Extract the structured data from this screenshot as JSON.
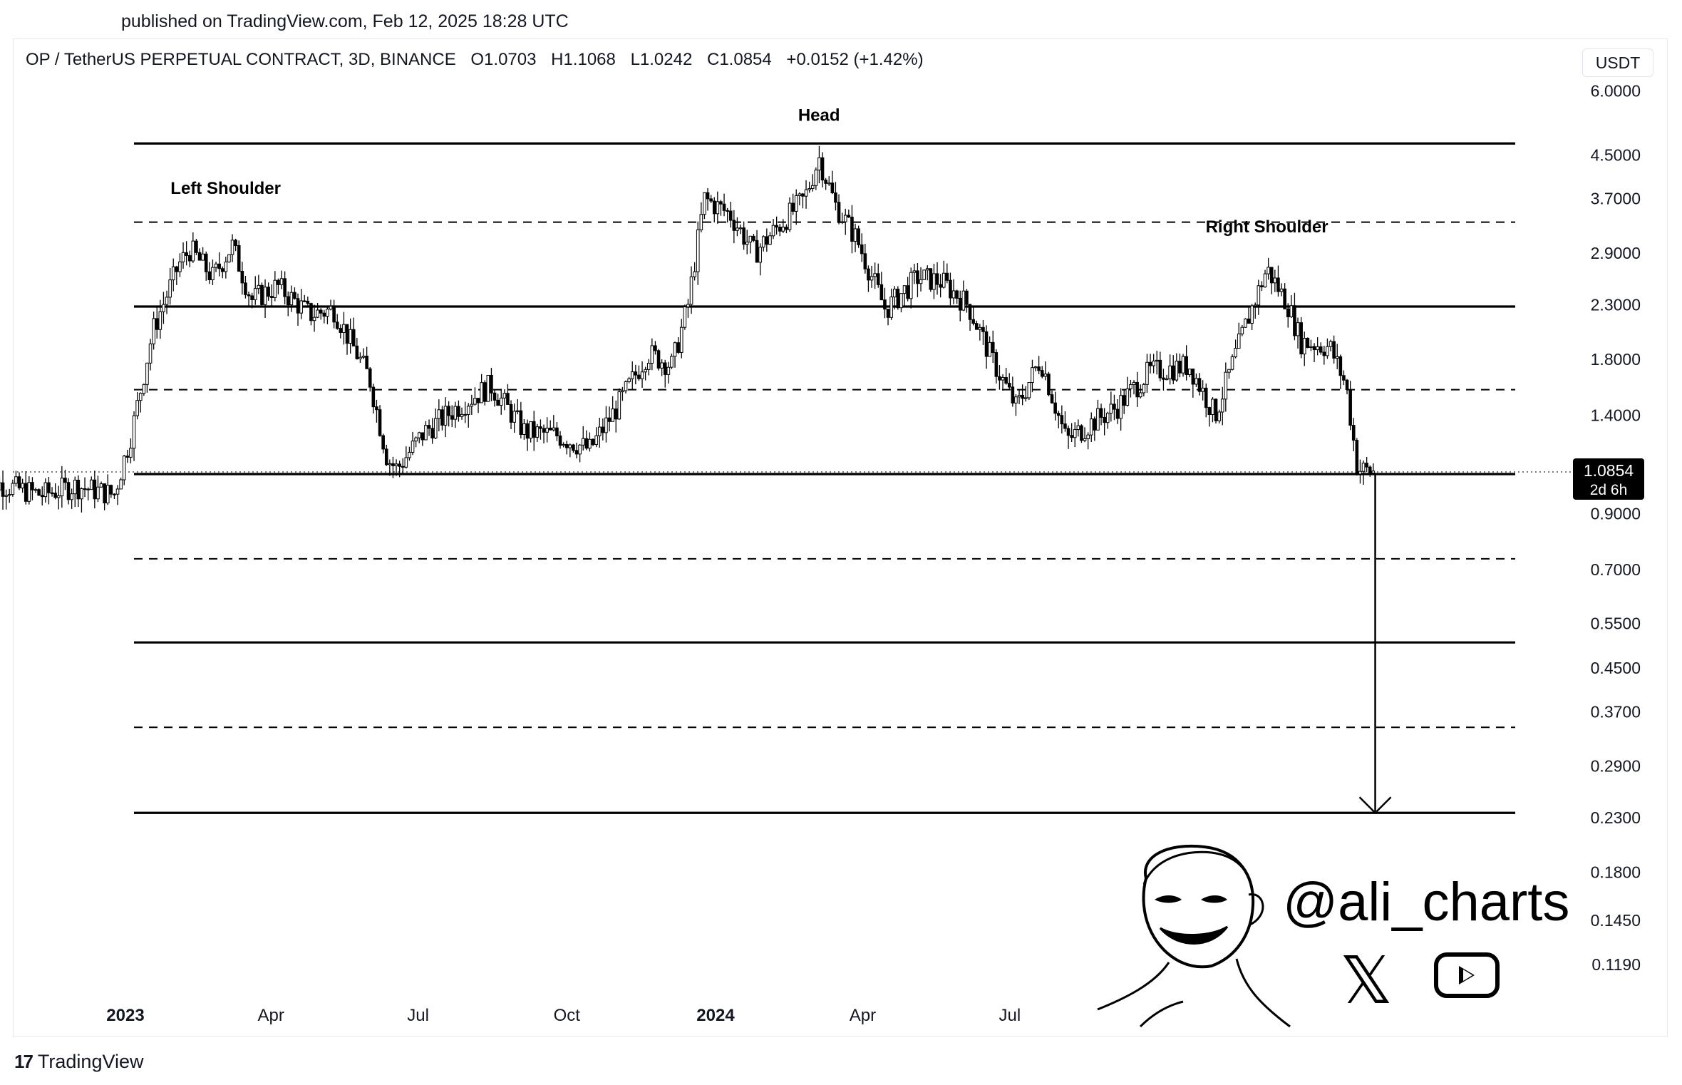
{
  "header": {
    "published": "published on TradingView.com, Feb 12, 2025 18:28 UTC"
  },
  "legend": {
    "symbol": "OP / TetherUS PERPETUAL CONTRACT, 3D, BINANCE",
    "open": "O1.0703",
    "high": "H1.1068",
    "low": "L1.0242",
    "close": "C1.0854",
    "change": "+0.0152 (+1.42%)"
  },
  "currency_button": "USDT",
  "footer": {
    "logo_mark": "17",
    "logo_text": "TradingView"
  },
  "watermark": {
    "handle": "@ali_charts",
    "x_logo": "𝕏",
    "icons": [
      "x-logo-icon",
      "youtube-icon"
    ]
  },
  "colors": {
    "line": "#000000",
    "candle_up_fill": "#ffffff",
    "candle_down_fill": "#000000",
    "price_label_bg": "#000000"
  },
  "chart_data": {
    "type": "candlestick",
    "title": "",
    "scale": "log",
    "ylim": [
      0.1,
      6.5
    ],
    "y_ticks": [
      {
        "label": "6.0000",
        "value": 6.0
      },
      {
        "label": "4.5000",
        "value": 4.5
      },
      {
        "label": "3.7000",
        "value": 3.7
      },
      {
        "label": "2.9000",
        "value": 2.9
      },
      {
        "label": "2.3000",
        "value": 2.3
      },
      {
        "label": "1.8000",
        "value": 1.8
      },
      {
        "label": "1.4000",
        "value": 1.4
      },
      {
        "label": "0.9000",
        "value": 0.9
      },
      {
        "label": "0.7000",
        "value": 0.7
      },
      {
        "label": "0.5500",
        "value": 0.55
      },
      {
        "label": "0.4500",
        "value": 0.45
      },
      {
        "label": "0.3700",
        "value": 0.37
      },
      {
        "label": "0.2900",
        "value": 0.29
      },
      {
        "label": "0.2300",
        "value": 0.23
      },
      {
        "label": "0.1800",
        "value": 0.18
      },
      {
        "label": "0.1450",
        "value": 0.145
      },
      {
        "label": "0.1190",
        "value": 0.119
      }
    ],
    "x_ticks": [
      {
        "label": "2023",
        "bold": true,
        "date": "2023-01-01"
      },
      {
        "label": "Apr",
        "bold": false,
        "date": "2023-04-01"
      },
      {
        "label": "Jul",
        "bold": false,
        "date": "2023-07-01"
      },
      {
        "label": "Oct",
        "bold": false,
        "date": "2023-10-01"
      },
      {
        "label": "2024",
        "bold": true,
        "date": "2024-01-01"
      },
      {
        "label": "Apr",
        "bold": false,
        "date": "2024-04-01"
      },
      {
        "label": "Jul",
        "bold": false,
        "date": "2024-07-01"
      }
    ],
    "last_price": {
      "label": "1.0854",
      "countdown": "2d 6h",
      "value": 1.0854
    },
    "annotations": [
      {
        "text": "Left Shoulder",
        "date": "2023-03-04",
        "price": 3.78
      },
      {
        "text": "Head",
        "date": "2024-03-05",
        "price": 5.25
      },
      {
        "text": "Right Shoulder",
        "date": "2024-12-07",
        "price": 3.18
      }
    ],
    "levels": [
      {
        "price": 4.74,
        "style": "solid"
      },
      {
        "price": 3.33,
        "style": "dashed"
      },
      {
        "price": 2.28,
        "style": "solid"
      },
      {
        "price": 1.57,
        "style": "dashed"
      },
      {
        "price": 1.075,
        "style": "solid"
      },
      {
        "price": 0.735,
        "style": "dashed"
      },
      {
        "price": 0.505,
        "style": "solid"
      },
      {
        "price": 0.345,
        "style": "dashed"
      },
      {
        "price": 0.235,
        "style": "solid"
      }
    ],
    "target_arrow": {
      "date": "2025-02-12",
      "from": 1.075,
      "to": 0.235
    },
    "anchor_points": [
      {
        "date": "2022-10-03",
        "price": 1.05
      },
      {
        "date": "2022-11-10",
        "price": 0.98
      },
      {
        "date": "2022-12-01",
        "price": 1.02
      },
      {
        "date": "2022-12-25",
        "price": 0.98
      },
      {
        "date": "2023-01-05",
        "price": 1.3
      },
      {
        "date": "2023-01-18",
        "price": 2.05
      },
      {
        "date": "2023-02-03",
        "price": 2.75
      },
      {
        "date": "2023-02-10",
        "price": 2.95
      },
      {
        "date": "2023-02-24",
        "price": 2.6
      },
      {
        "date": "2023-03-08",
        "price": 3.0
      },
      {
        "date": "2023-03-20",
        "price": 2.35
      },
      {
        "date": "2023-04-05",
        "price": 2.5
      },
      {
        "date": "2023-04-25",
        "price": 2.2
      },
      {
        "date": "2023-05-10",
        "price": 2.25
      },
      {
        "date": "2023-06-01",
        "price": 1.65
      },
      {
        "date": "2023-06-12",
        "price": 1.15
      },
      {
        "date": "2023-06-18",
        "price": 1.1
      },
      {
        "date": "2023-07-05",
        "price": 1.3
      },
      {
        "date": "2023-07-25",
        "price": 1.45
      },
      {
        "date": "2023-08-15",
        "price": 1.6
      },
      {
        "date": "2023-09-05",
        "price": 1.3
      },
      {
        "date": "2023-09-25",
        "price": 1.28
      },
      {
        "date": "2023-10-15",
        "price": 1.2
      },
      {
        "date": "2023-11-01",
        "price": 1.45
      },
      {
        "date": "2023-11-20",
        "price": 1.85
      },
      {
        "date": "2023-12-05",
        "price": 1.75
      },
      {
        "date": "2023-12-15",
        "price": 2.3
      },
      {
        "date": "2023-12-25",
        "price": 3.7
      },
      {
        "date": "2024-01-10",
        "price": 3.45
      },
      {
        "date": "2024-01-25",
        "price": 2.9
      },
      {
        "date": "2024-02-10",
        "price": 3.3
      },
      {
        "date": "2024-02-25",
        "price": 3.7
      },
      {
        "date": "2024-03-05",
        "price": 4.45
      },
      {
        "date": "2024-03-15",
        "price": 3.6
      },
      {
        "date": "2024-03-28",
        "price": 3.1
      },
      {
        "date": "2024-04-15",
        "price": 2.25
      },
      {
        "date": "2024-05-05",
        "price": 2.6
      },
      {
        "date": "2024-05-20",
        "price": 2.55
      },
      {
        "date": "2024-06-05",
        "price": 2.3
      },
      {
        "date": "2024-06-20",
        "price": 1.8
      },
      {
        "date": "2024-07-05",
        "price": 1.45
      },
      {
        "date": "2024-07-20",
        "price": 1.8
      },
      {
        "date": "2024-08-05",
        "price": 1.25
      },
      {
        "date": "2024-08-20",
        "price": 1.35
      },
      {
        "date": "2024-09-05",
        "price": 1.45
      },
      {
        "date": "2024-09-25",
        "price": 1.7
      },
      {
        "date": "2024-10-20",
        "price": 1.75
      },
      {
        "date": "2024-11-05",
        "price": 1.4
      },
      {
        "date": "2024-11-25",
        "price": 2.15
      },
      {
        "date": "2024-12-07",
        "price": 2.7
      },
      {
        "date": "2024-12-20",
        "price": 2.3
      },
      {
        "date": "2024-12-28",
        "price": 1.95
      },
      {
        "date": "2025-01-15",
        "price": 1.9
      },
      {
        "date": "2025-01-25",
        "price": 1.6
      },
      {
        "date": "2025-02-01",
        "price": 1.1
      },
      {
        "date": "2025-02-12",
        "price": 1.0854
      }
    ]
  }
}
